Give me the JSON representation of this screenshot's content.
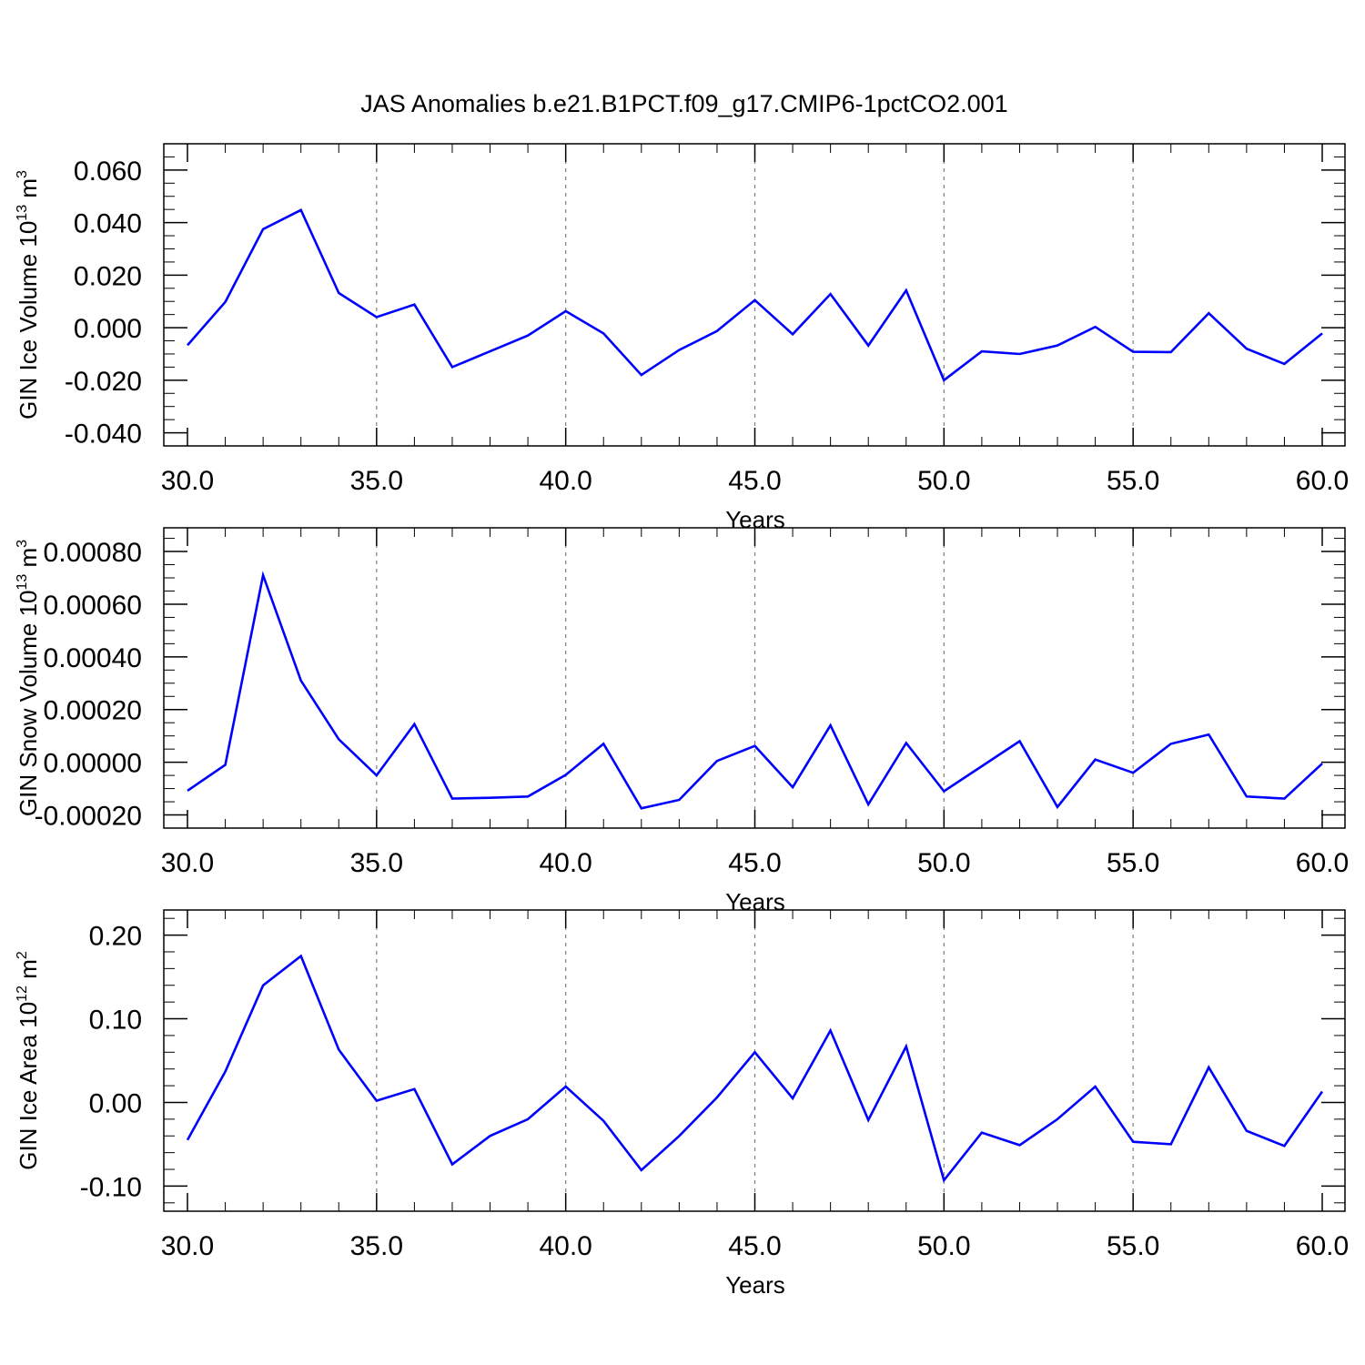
{
  "figure": {
    "title": "JAS Anomalies b.e21.B1PCT.f09_g17.CMIP6-1pctCO2.001",
    "line_color": "#0000ff",
    "grid_color": "#808080"
  },
  "chart_data": [
    {
      "type": "line",
      "title": "",
      "xlabel": "Years",
      "ylabel": "GIN Ice Volume 10",
      "ylabel_exponent": "13",
      "ylabel_unit": " m",
      "ylabel_unit_exponent": "3",
      "xlim": [
        30,
        60
      ],
      "ylim": [
        -0.045,
        0.07
      ],
      "xticks": [
        30,
        35,
        40,
        45,
        50,
        55,
        60
      ],
      "xtick_labels": [
        "30.0",
        "35.0",
        "40.0",
        "45.0",
        "50.0",
        "55.0",
        "60.0"
      ],
      "yticks": [
        -0.04,
        -0.02,
        0.0,
        0.02,
        0.04,
        0.06
      ],
      "ytick_labels": [
        "-0.040",
        "-0.020",
        "0.000",
        "0.020",
        "0.040",
        "0.060"
      ],
      "yminor_step": 0.005,
      "grid": "vertical-dashed",
      "x": [
        30,
        31,
        32,
        33,
        34,
        35,
        36,
        37,
        38,
        39,
        40,
        41,
        42,
        43,
        44,
        45,
        46,
        47,
        48,
        49,
        50,
        51,
        52,
        53,
        54,
        55,
        56,
        57,
        58,
        59,
        60
      ],
      "series": [
        {
          "values": [
            -0.0067,
            0.0098,
            0.0375,
            0.0448,
            0.0132,
            0.004,
            0.0088,
            -0.015,
            -0.009,
            -0.003,
            0.0063,
            -0.0022,
            -0.018,
            -0.0085,
            -0.0013,
            0.0105,
            -0.0025,
            0.0128,
            -0.0068,
            0.0142,
            -0.02,
            -0.009,
            -0.01,
            -0.0068,
            0.0003,
            -0.0092,
            -0.0093,
            0.0055,
            -0.008,
            -0.0138,
            -0.0022
          ]
        }
      ]
    },
    {
      "type": "line",
      "title": "",
      "xlabel": "Years",
      "ylabel": "GIN Snow Volume 10",
      "ylabel_exponent": "13",
      "ylabel_unit": " m",
      "ylabel_unit_exponent": "3",
      "xlim": [
        30,
        60
      ],
      "ylim": [
        -0.00025,
        0.00089
      ],
      "xticks": [
        30,
        35,
        40,
        45,
        50,
        55,
        60
      ],
      "xtick_labels": [
        "30.0",
        "35.0",
        "40.0",
        "45.0",
        "50.0",
        "55.0",
        "60.0"
      ],
      "yticks": [
        -0.0002,
        0.0,
        0.0002,
        0.0004,
        0.0006,
        0.0008
      ],
      "ytick_labels": [
        "-0.00020",
        "0.00000",
        "0.00020",
        "0.00040",
        "0.00060",
        "0.00080"
      ],
      "yminor_step": 5e-05,
      "grid": "vertical-dashed",
      "x": [
        30,
        31,
        32,
        33,
        34,
        35,
        36,
        37,
        38,
        39,
        40,
        41,
        42,
        43,
        44,
        45,
        46,
        47,
        48,
        49,
        50,
        51,
        52,
        53,
        54,
        55,
        56,
        57,
        58,
        59,
        60
      ],
      "series": [
        {
          "values": [
            -0.000108,
            -1e-05,
            0.00071,
            0.00031,
            8.7e-05,
            -5e-05,
            0.000145,
            -0.000138,
            -0.000135,
            -0.00013,
            -4.8e-05,
            7e-05,
            -0.000175,
            -0.000143,
            5e-06,
            6.2e-05,
            -9.5e-05,
            0.00014,
            -0.00016,
            7.3e-05,
            -0.00011,
            -1.5e-05,
            8e-05,
            -0.00017,
            1e-05,
            -4e-05,
            7e-05,
            0.000105,
            -0.00013,
            -0.000138,
            -5e-06
          ]
        }
      ]
    },
    {
      "type": "line",
      "title": "",
      "xlabel": "Years",
      "ylabel": "GIN Ice Area 10",
      "ylabel_exponent": "12",
      "ylabel_unit": " m",
      "ylabel_unit_exponent": "2",
      "xlim": [
        30,
        60
      ],
      "ylim": [
        -0.13,
        0.23
      ],
      "xticks": [
        30,
        35,
        40,
        45,
        50,
        55,
        60
      ],
      "xtick_labels": [
        "30.0",
        "35.0",
        "40.0",
        "45.0",
        "50.0",
        "55.0",
        "60.0"
      ],
      "yticks": [
        -0.1,
        0.0,
        0.1,
        0.2
      ],
      "ytick_labels": [
        "-0.10",
        "0.00",
        "0.10",
        "0.20"
      ],
      "yminor_step": 0.02,
      "grid": "vertical-dashed",
      "x": [
        30,
        31,
        32,
        33,
        34,
        35,
        36,
        37,
        38,
        39,
        40,
        41,
        42,
        43,
        44,
        45,
        46,
        47,
        48,
        49,
        50,
        51,
        52,
        53,
        54,
        55,
        56,
        57,
        58,
        59,
        60
      ],
      "series": [
        {
          "values": [
            -0.045,
            0.037,
            0.14,
            0.175,
            0.063,
            0.002,
            0.016,
            -0.074,
            -0.04,
            -0.02,
            0.019,
            -0.022,
            -0.081,
            -0.04,
            0.006,
            0.06,
            0.005,
            0.086,
            -0.021,
            0.067,
            -0.093,
            -0.036,
            -0.051,
            -0.02,
            0.019,
            -0.047,
            -0.05,
            0.042,
            -0.034,
            -0.052,
            0.013
          ]
        }
      ]
    }
  ]
}
